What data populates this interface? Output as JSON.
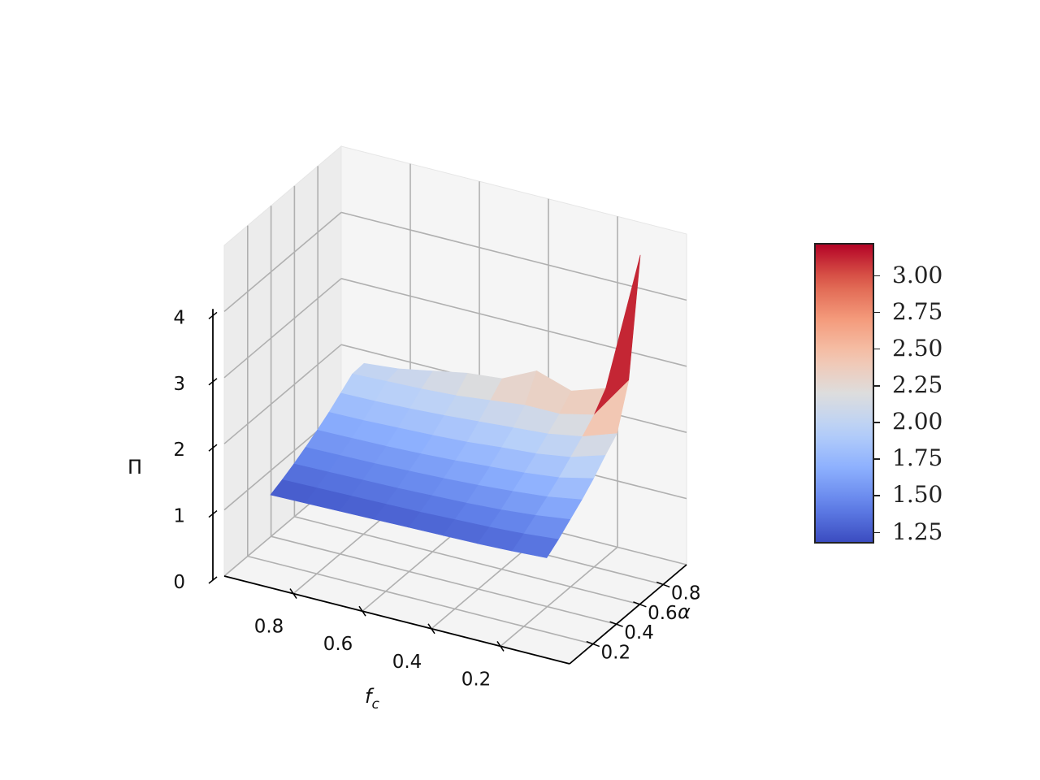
{
  "chart_data": {
    "type": "surface3d",
    "x": [
      0.1,
      0.2,
      0.3,
      0.4,
      0.5,
      0.6,
      0.7,
      0.8,
      0.9
    ],
    "y": [
      0.1,
      0.2,
      0.3,
      0.4,
      0.5,
      0.6,
      0.7,
      0.8,
      0.9
    ],
    "z": [
      [
        1.32,
        1.45,
        1.6,
        1.75,
        1.92,
        2.12,
        2.3,
        2.95,
        4.7
      ],
      [
        1.29,
        1.4,
        1.53,
        1.66,
        1.8,
        1.96,
        2.12,
        2.3,
        2.55
      ],
      [
        1.27,
        1.37,
        1.48,
        1.61,
        1.74,
        1.88,
        2.03,
        2.18,
        2.38
      ],
      [
        1.26,
        1.35,
        1.45,
        1.57,
        1.7,
        1.84,
        1.99,
        2.18,
        2.55
      ],
      [
        1.25,
        1.33,
        1.43,
        1.54,
        1.66,
        1.79,
        1.95,
        2.12,
        2.3
      ],
      [
        1.24,
        1.32,
        1.41,
        1.52,
        1.63,
        1.76,
        1.91,
        2.06,
        2.25
      ],
      [
        1.23,
        1.31,
        1.4,
        1.5,
        1.61,
        1.74,
        1.88,
        2.03,
        2.15
      ],
      [
        1.22,
        1.3,
        1.39,
        1.49,
        1.6,
        1.72,
        1.86,
        2.01,
        2.05
      ],
      [
        1.21,
        1.29,
        1.38,
        1.48,
        1.59,
        1.71,
        1.85,
        1.99,
        2.0
      ]
    ],
    "xlabel": "f_c",
    "ylabel": "α",
    "zlabel": "Π",
    "xticks": [
      0.2,
      0.4,
      0.6,
      0.8
    ],
    "xtick_labels": [
      "0.2",
      "0.4",
      "0.6",
      "0.8"
    ],
    "yticks": [
      0.2,
      0.4,
      0.6,
      0.8
    ],
    "ytick_labels": [
      "0.2",
      "0.4",
      "0.6",
      "0.8"
    ],
    "zticks": [
      0,
      1,
      2,
      3,
      4
    ],
    "ztick_labels": [
      "0",
      "1",
      "2",
      "3",
      "4"
    ],
    "zlim": [
      0,
      5
    ],
    "colormap": "coolwarm",
    "colorbar": {
      "vmin": 1.17,
      "vmax": 3.22,
      "ticks": [
        1.25,
        1.5,
        1.75,
        2.0,
        2.25,
        2.5,
        2.75,
        3.0
      ],
      "tick_labels": [
        "1.25",
        "1.50",
        "1.75",
        "2.00",
        "2.25",
        "2.50",
        "2.75",
        "3.00"
      ]
    },
    "grid": true
  }
}
